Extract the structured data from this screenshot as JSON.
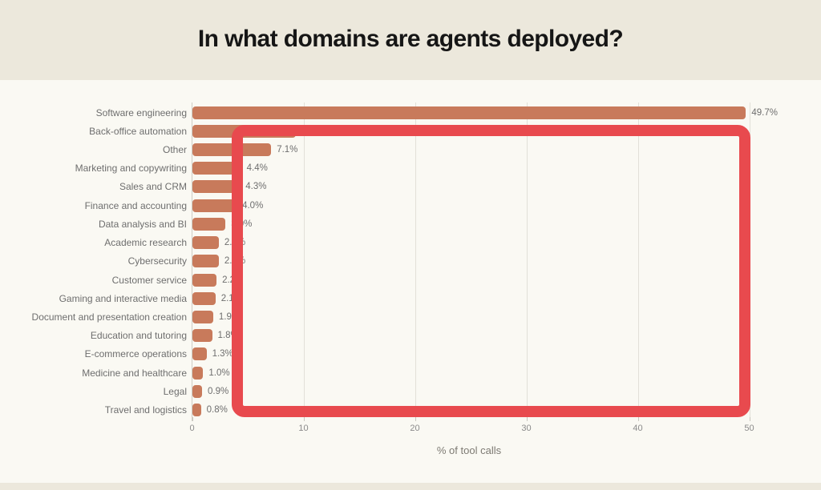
{
  "title": "In what domains are agents deployed?",
  "chart_data": {
    "type": "bar",
    "orientation": "horizontal",
    "title": "In what domains are agents deployed?",
    "xlabel": "% of tool calls",
    "ylabel": "",
    "xlim": [
      0,
      53
    ],
    "x_ticks": [
      0,
      10,
      20,
      30,
      40,
      50
    ],
    "grid": "vertical",
    "legend": "none",
    "categories": [
      "Software engineering",
      "Back-office automation",
      "Other",
      "Marketing and copywriting",
      "Sales and CRM",
      "Finance and accounting",
      "Data analysis and BI",
      "Academic research",
      "Cybersecurity",
      "Customer service",
      "Gaming and interactive media",
      "Document and presentation creation",
      "Education and tutoring",
      "E-commerce operations",
      "Medicine and healthcare",
      "Legal",
      "Travel and logistics"
    ],
    "values": [
      49.7,
      9.3,
      7.1,
      4.4,
      4.3,
      4.0,
      3.0,
      2.4,
      2.4,
      2.2,
      2.1,
      1.9,
      1.8,
      1.3,
      1.0,
      0.9,
      0.8
    ],
    "value_labels": [
      "49.7%",
      "9.3%",
      "7.1%",
      "4.4%",
      "4.3%",
      "4.0%",
      "3.0%",
      "2.4%",
      "2.4%",
      "2.2%",
      "2.1%",
      "1.9%",
      "1.8%",
      "1.3%",
      "1.0%",
      "0.9%",
      "0.8%"
    ]
  },
  "annotation": {
    "shape": "rectangle-outline",
    "color": "#E84A4E"
  },
  "colors": {
    "band": "#ECE8DC",
    "chart_bg": "#FAF9F3",
    "bar": "#C87A5B",
    "gridline": "#E2E0D8",
    "category_text": "#6E6E6E",
    "tick_text": "#8A8A8A",
    "title_text": "#161616",
    "annotation_red": "#E84A4E"
  }
}
